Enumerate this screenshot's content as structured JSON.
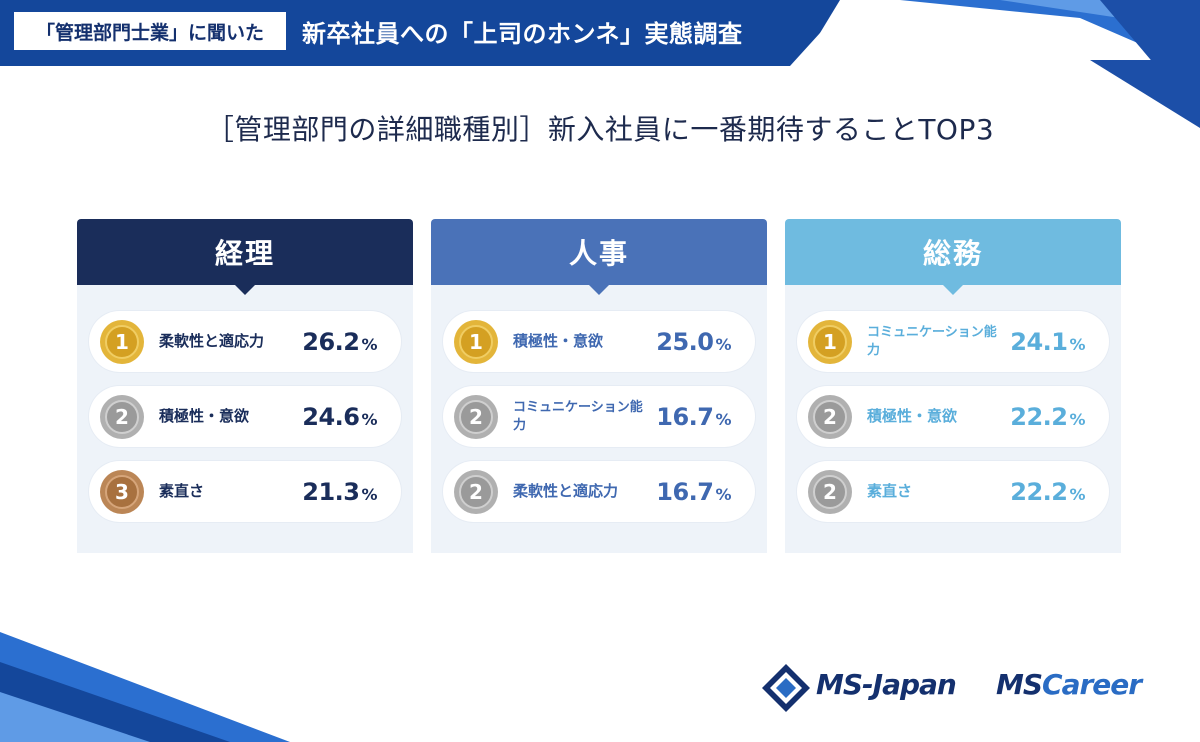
{
  "header": {
    "tag": "「管理部門士業」に聞いた",
    "title": "新卒社員への「上司のホンネ」実態調査"
  },
  "page_title": "［管理部門の詳細職種別］新入社員に一番期待することTOP3",
  "panels": [
    {
      "name": "経理",
      "items": [
        {
          "rank": "1",
          "medal": "gold",
          "label": "柔軟性と適応力",
          "value": "26.2",
          "unit": "%"
        },
        {
          "rank": "2",
          "medal": "silver",
          "label": "積極性・意欲",
          "value": "24.6",
          "unit": "%"
        },
        {
          "rank": "3",
          "medal": "bronze",
          "label": "素直さ",
          "value": "21.3",
          "unit": "%"
        }
      ]
    },
    {
      "name": "人事",
      "items": [
        {
          "rank": "1",
          "medal": "gold",
          "label": "積極性・意欲",
          "value": "25.0",
          "unit": "%"
        },
        {
          "rank": "2",
          "medal": "silver",
          "label": "コミュニケーション能力",
          "value": "16.7",
          "unit": "%"
        },
        {
          "rank": "2",
          "medal": "silver",
          "label": "柔軟性と適応力",
          "value": "16.7",
          "unit": "%"
        }
      ]
    },
    {
      "name": "総務",
      "items": [
        {
          "rank": "1",
          "medal": "gold",
          "label": "コミュニケーション能力",
          "value": "24.1",
          "unit": "%"
        },
        {
          "rank": "2",
          "medal": "silver",
          "label": "積極性・意欲",
          "value": "22.2",
          "unit": "%"
        },
        {
          "rank": "2",
          "medal": "silver",
          "label": "素直さ",
          "value": "22.2",
          "unit": "%"
        }
      ]
    }
  ],
  "logos": {
    "ms_japan": "MS-Japan",
    "ms_career_ms": "MS",
    "ms_career_c": "Career"
  },
  "colors": {
    "navy": "#1a2d5a",
    "blue": "#4a72b8",
    "light_blue": "#6fbbe0",
    "gold": "#d9a92a",
    "silver": "#a3a3a3",
    "bronze": "#b07a4a"
  }
}
